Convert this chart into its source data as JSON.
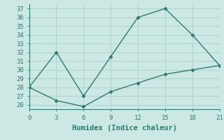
{
  "line1_x": [
    0,
    3,
    6,
    9,
    12,
    15,
    18,
    21
  ],
  "line1_y": [
    28,
    32,
    27,
    31.5,
    36,
    37,
    34,
    30.5
  ],
  "line2_x": [
    0,
    3,
    6,
    9,
    12,
    15,
    18,
    21
  ],
  "line2_y": [
    28,
    26.5,
    25.8,
    27.5,
    28.5,
    29.5,
    30,
    30.5
  ],
  "line_color": "#2d7c6e",
  "bg_color": "#cce8e4",
  "grid_color": "#aacfcc",
  "xlabel": "Humidex (Indice chaleur)",
  "xlim": [
    0,
    21
  ],
  "ylim": [
    25.5,
    37.5
  ],
  "xticks": [
    0,
    3,
    6,
    9,
    12,
    15,
    18,
    21
  ],
  "yticks": [
    26,
    27,
    28,
    29,
    30,
    31,
    32,
    33,
    34,
    35,
    36,
    37
  ],
  "marker": "D",
  "markersize": 2.5,
  "linewidth": 1.0,
  "xlabel_fontsize": 7.5,
  "tick_fontsize": 6.5
}
